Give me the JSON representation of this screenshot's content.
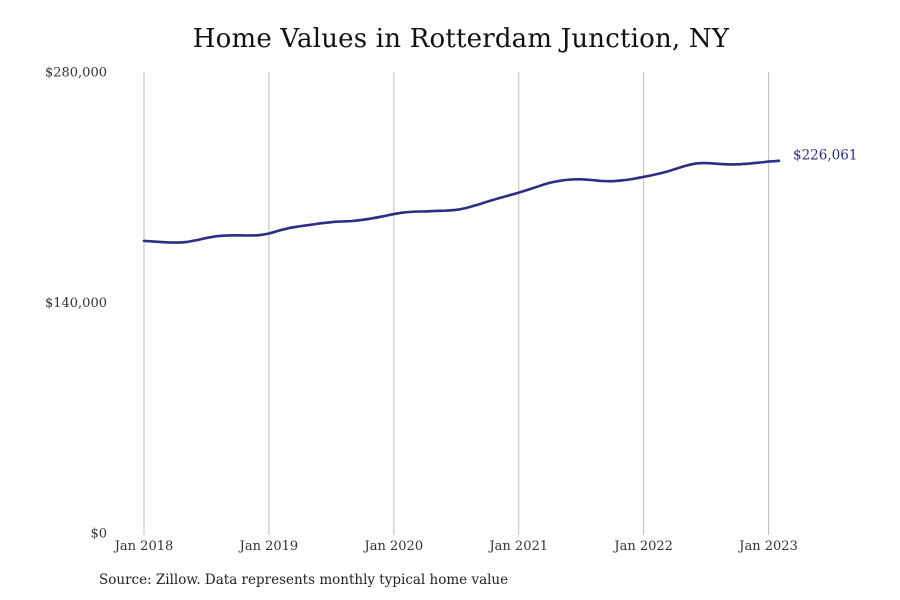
{
  "colors": {
    "line": "#2e2c85",
    "grid": "#bdbdbd",
    "background": "#ffffff"
  },
  "source_note": "Source: Zillow. Data represents monthly typical home value",
  "chart_data": {
    "type": "line",
    "title": "Home Values in Rotterdam Junction, NY",
    "xlabel": "",
    "ylabel": "",
    "ylim": [
      0,
      280000
    ],
    "xlim": [
      "2018-01",
      "2023-02"
    ],
    "grid": {
      "x": true,
      "y": false
    },
    "legend": "none",
    "y_ticks": [
      {
        "value": 0,
        "label": "$0"
      },
      {
        "value": 140000,
        "label": "$140,000"
      },
      {
        "value": 280000,
        "label": "$280,000"
      }
    ],
    "x_ticks": [
      {
        "value": "2018-01",
        "label": "Jan 2018"
      },
      {
        "value": "2019-01",
        "label": "Jan 2019"
      },
      {
        "value": "2020-01",
        "label": "Jan 2020"
      },
      {
        "value": "2021-01",
        "label": "Jan 2021"
      },
      {
        "value": "2022-01",
        "label": "Jan 2022"
      },
      {
        "value": "2023-01",
        "label": "Jan 2023"
      }
    ],
    "end_label": "$226,061",
    "series": [
      {
        "x": [
          "2018-01",
          "2018-02",
          "2018-03",
          "2018-04",
          "2018-05",
          "2018-06",
          "2018-07",
          "2018-08",
          "2018-09",
          "2018-10",
          "2018-11",
          "2018-12",
          "2019-01",
          "2019-02",
          "2019-03",
          "2019-04",
          "2019-05",
          "2019-06",
          "2019-07",
          "2019-08",
          "2019-09",
          "2019-10",
          "2019-11",
          "2019-12",
          "2020-01",
          "2020-02",
          "2020-03",
          "2020-04",
          "2020-05",
          "2020-06",
          "2020-07",
          "2020-08",
          "2020-09",
          "2020-10",
          "2020-11",
          "2020-12",
          "2021-01",
          "2021-02",
          "2021-03",
          "2021-04",
          "2021-05",
          "2021-06",
          "2021-07",
          "2021-08",
          "2021-09",
          "2021-10",
          "2021-11",
          "2021-12",
          "2022-01",
          "2022-02",
          "2022-03",
          "2022-04",
          "2022-05",
          "2022-06",
          "2022-07",
          "2022-08",
          "2022-09",
          "2022-10",
          "2022-11",
          "2022-12",
          "2023-01",
          "2023-02"
        ],
        "values": [
          177400,
          177000,
          176600,
          176400,
          176700,
          177800,
          179200,
          180300,
          180700,
          180800,
          180700,
          180900,
          181900,
          183700,
          185300,
          186300,
          187200,
          188100,
          188800,
          189200,
          189500,
          190200,
          191200,
          192400,
          193700,
          194700,
          195200,
          195300,
          195600,
          195800,
          196300,
          197500,
          199300,
          201300,
          203200,
          204900,
          206700,
          208700,
          210800,
          212700,
          214000,
          214700,
          214800,
          214400,
          213800,
          213700,
          214200,
          215100,
          216300,
          217600,
          219100,
          221000,
          223000,
          224400,
          224700,
          224300,
          223900,
          223900,
          224300,
          224900,
          225600,
          226061
        ]
      }
    ]
  }
}
